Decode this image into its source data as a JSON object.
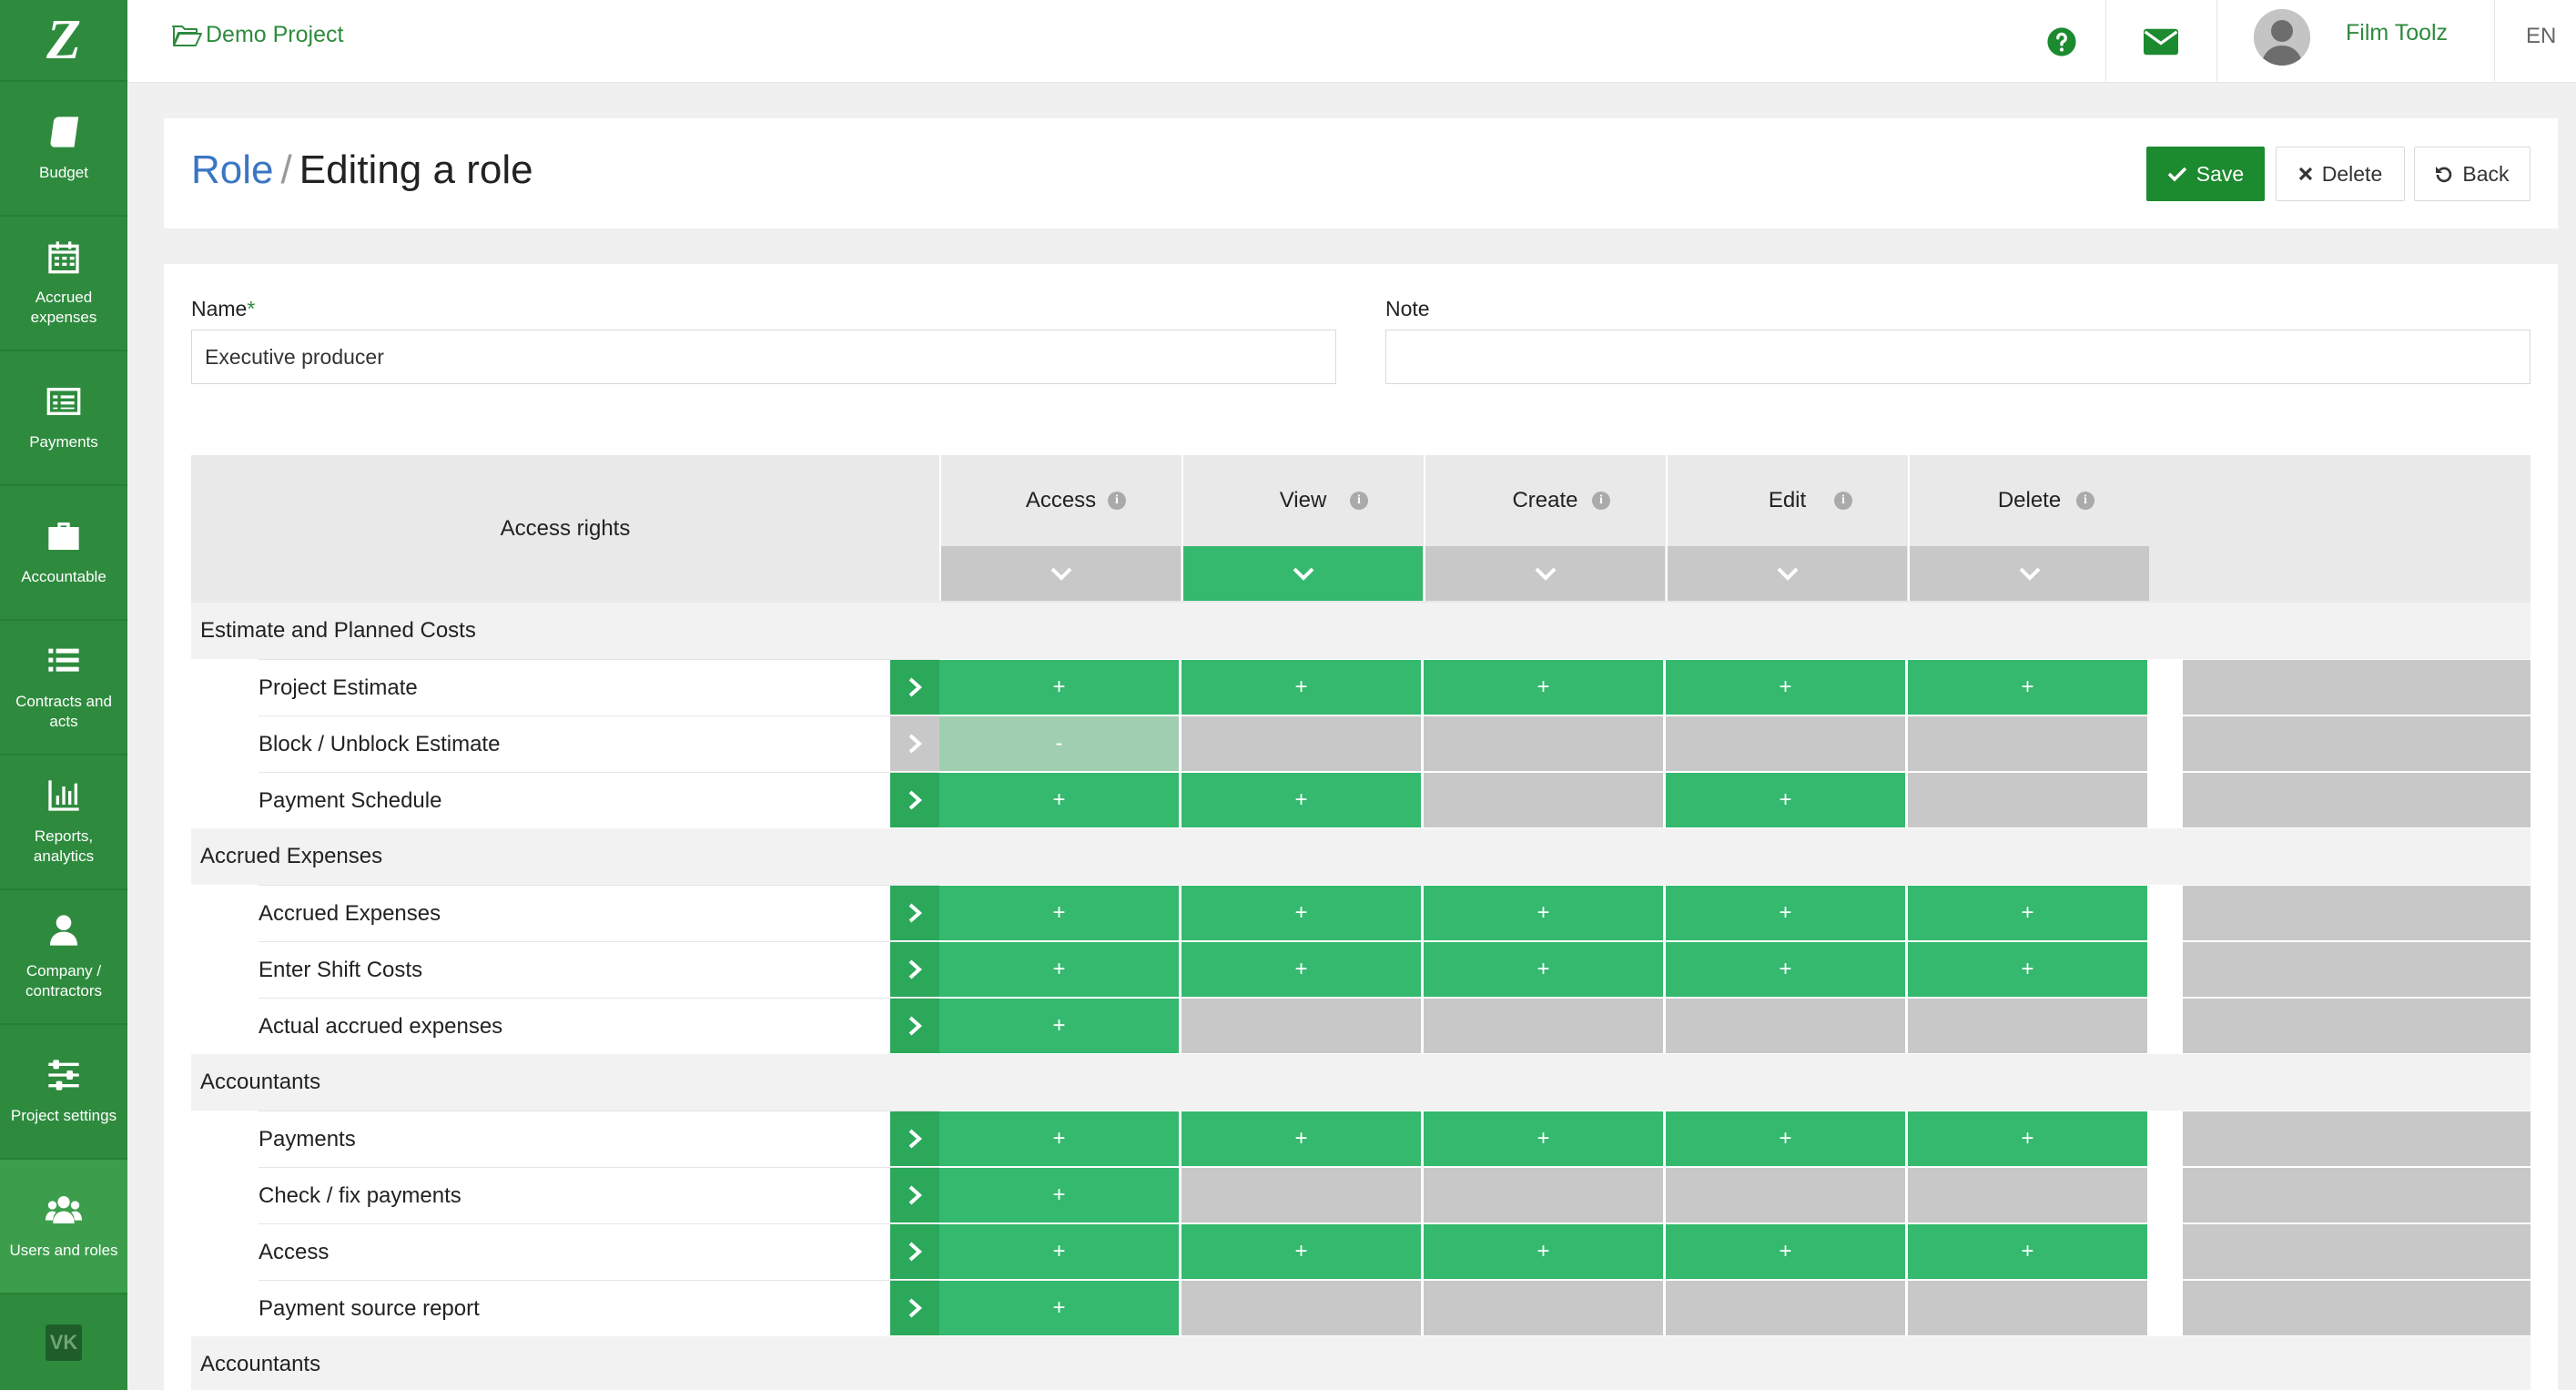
{
  "sidebar": {
    "logo": "Z",
    "items": [
      {
        "label": "Budget",
        "icon": "book-icon"
      },
      {
        "label": "Accrued expenses",
        "icon": "calendar-icon"
      },
      {
        "label": "Payments",
        "icon": "list-icon"
      },
      {
        "label": "Accountable",
        "icon": "briefcase-icon"
      },
      {
        "label": "Contracts and acts",
        "icon": "list-lines-icon"
      },
      {
        "label": "Reports, analytics",
        "icon": "bar-chart-icon"
      },
      {
        "label": "Company / contractors",
        "icon": "user-icon"
      },
      {
        "label": "Project settings",
        "icon": "sliders-icon"
      },
      {
        "label": "Users and roles",
        "icon": "users-icon"
      }
    ],
    "vk": "VK"
  },
  "topbar": {
    "project": "Demo Project",
    "user_name": "Film Toolz",
    "lang": "EN"
  },
  "header": {
    "role": "Role",
    "slash": "/",
    "title": "Editing a role",
    "save": "Save",
    "delete": "Delete",
    "back": "Back"
  },
  "form": {
    "name_label": "Name",
    "required": "*",
    "name_value": "Executive producer",
    "note_label": "Note",
    "note_value": ""
  },
  "table": {
    "access_rights": "Access rights",
    "columns": [
      "Access",
      "View",
      "Create",
      "Edit",
      "Delete"
    ],
    "column_toggles": [
      false,
      true,
      false,
      false,
      false
    ],
    "groups": [
      {
        "title": "Estimate and Planned Costs",
        "rows": [
          {
            "name": "Project Estimate",
            "active": true,
            "cells": [
              "+",
              "+",
              "+",
              "+",
              "+"
            ]
          },
          {
            "name": "Block / Unblock Estimate",
            "active": false,
            "cells": [
              "-",
              "",
              "",
              "",
              ""
            ]
          },
          {
            "name": "Payment Schedule",
            "active": true,
            "cells": [
              "+",
              "+",
              "",
              "+",
              ""
            ]
          }
        ]
      },
      {
        "title": "Accrued Expenses",
        "rows": [
          {
            "name": "Accrued Expenses",
            "active": true,
            "cells": [
              "+",
              "+",
              "+",
              "+",
              "+"
            ]
          },
          {
            "name": "Enter Shift Costs",
            "active": true,
            "cells": [
              "+",
              "+",
              "+",
              "+",
              "+"
            ]
          },
          {
            "name": "Actual accrued expenses",
            "active": true,
            "cells": [
              "+",
              "",
              "",
              "",
              ""
            ]
          }
        ]
      },
      {
        "title": "Accountants",
        "rows": [
          {
            "name": "Payments",
            "active": true,
            "cells": [
              "+",
              "+",
              "+",
              "+",
              "+"
            ]
          },
          {
            "name": "Check / fix payments",
            "active": true,
            "cells": [
              "+",
              "",
              "",
              "",
              ""
            ]
          },
          {
            "name": "Access",
            "active": true,
            "cells": [
              "+",
              "+",
              "+",
              "+",
              "+"
            ]
          },
          {
            "name": "Payment source report",
            "active": true,
            "cells": [
              "+",
              "",
              "",
              "",
              ""
            ]
          }
        ]
      },
      {
        "title": "Accountants",
        "rows": []
      }
    ]
  },
  "colors": {
    "sidebar": "#2e8b3e",
    "accent_green": "#34b96f",
    "save_button": "#1c8a2e",
    "off_cell": "#c8c8c8",
    "role_link": "#3a76c4"
  }
}
